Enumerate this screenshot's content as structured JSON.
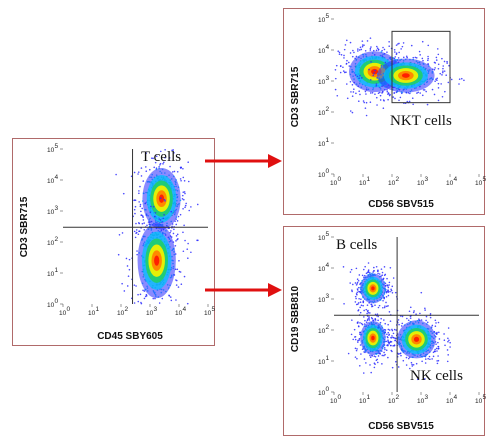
{
  "ticks": {
    "labels": [
      "10",
      "10",
      "10",
      "10",
      "10",
      "10"
    ],
    "exponents": [
      "0",
      "1",
      "2",
      "3",
      "4",
      "5"
    ]
  },
  "plots": {
    "left": {
      "xlabel": "CD45 SBY605",
      "ylabel": "CD3 SBR715",
      "annotation": "T cells"
    },
    "top_right": {
      "xlabel": "CD56 SBV515",
      "ylabel": "CD3 SBR715",
      "annotation": "NKT cells"
    },
    "bottom_right": {
      "xlabel": "CD56 SBV515",
      "ylabel": "CD19 SBB810",
      "annotation_top": "B cells",
      "annotation_bottom": "NK cells"
    }
  },
  "colors": {
    "panel_border": "#b06a6a",
    "arrow": "#e01010",
    "gate_line": "#333333",
    "density_scale": [
      "#2a2aff",
      "#00c0ff",
      "#20d060",
      "#f0f000",
      "#ff8800",
      "#ff2000"
    ]
  },
  "chart_data": [
    {
      "type": "scatter",
      "plot": "left",
      "xlabel": "CD45 SBY605",
      "ylabel": "CD3 SBR715",
      "xscale": "log",
      "yscale": "log",
      "xlim": [
        1,
        100000
      ],
      "ylim": [
        1,
        100000
      ],
      "gate": {
        "x": 250,
        "y": 300
      },
      "populations": [
        {
          "label": "T cells",
          "center": [
            2500,
            2500
          ],
          "spread_decades": [
            0.3,
            0.45
          ]
        },
        {
          "label": "",
          "center": [
            1700,
            25
          ],
          "spread_decades": [
            0.3,
            0.55
          ]
        }
      ]
    },
    {
      "type": "scatter",
      "plot": "top_right",
      "xlabel": "CD56 SBV515",
      "ylabel": "CD3 SBR715",
      "xscale": "log",
      "yscale": "log",
      "xlim": [
        1,
        100000
      ],
      "ylim": [
        1,
        100000
      ],
      "gate_box": {
        "x": [
          100,
          10000
        ],
        "y": [
          200,
          40000
        ]
      },
      "populations": [
        {
          "label": "",
          "center": [
            25,
            2000
          ],
          "spread_decades": [
            0.4,
            0.3
          ]
        },
        {
          "label": "NKT cells",
          "center": [
            300,
            1500
          ],
          "spread_decades": [
            0.45,
            0.25
          ]
        }
      ]
    },
    {
      "type": "scatter",
      "plot": "bottom_right",
      "xlabel": "CD56 SBV515",
      "ylabel": "CD19 SBB810",
      "xscale": "log",
      "yscale": "log",
      "xlim": [
        1,
        100000
      ],
      "ylim": [
        1,
        100000
      ],
      "gate": {
        "x": 150,
        "y": 300
      },
      "populations": [
        {
          "label": "B cells",
          "center": [
            22,
            2200
          ],
          "spread_decades": [
            0.2,
            0.22
          ]
        },
        {
          "label": "",
          "center": [
            22,
            55
          ],
          "spread_decades": [
            0.2,
            0.25
          ]
        },
        {
          "label": "NK cells",
          "center": [
            700,
            50
          ],
          "spread_decades": [
            0.3,
            0.28
          ]
        }
      ]
    }
  ]
}
